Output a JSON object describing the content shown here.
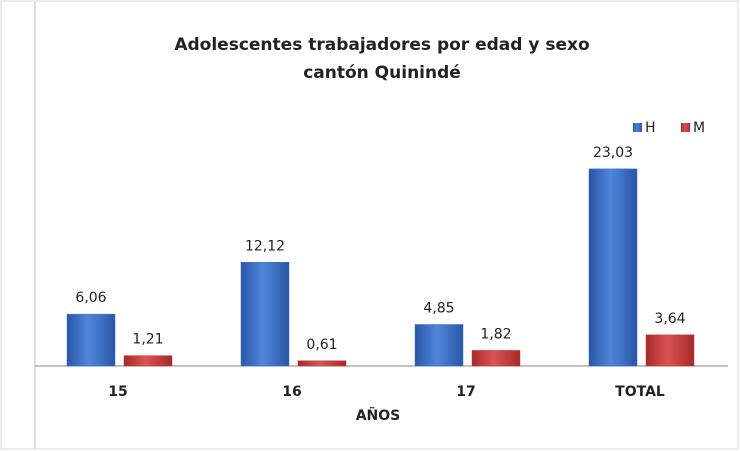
{
  "chart_data": {
    "type": "bar",
    "title": [
      "Adolescentes trabajadores por edad y sexo",
      "cantón Quinindé"
    ],
    "x_label": "AÑOS",
    "categories": [
      "15",
      "16",
      "17",
      "TOTAL"
    ],
    "series": [
      {
        "name": "H",
        "color": "#3d6fc6",
        "values": [
          6.06,
          12.12,
          4.85,
          23.03
        ],
        "value_labels": [
          "6,06",
          "12,12",
          "4,85",
          "23,03"
        ]
      },
      {
        "name": "M",
        "color": "#c63a3a",
        "values": [
          1.21,
          0.61,
          1.82,
          3.64
        ],
        "value_labels": [
          "1,21",
          "0,61",
          "1,82",
          "3,64"
        ]
      }
    ],
    "ylim": [
      0,
      25
    ],
    "legend": "top-right"
  }
}
